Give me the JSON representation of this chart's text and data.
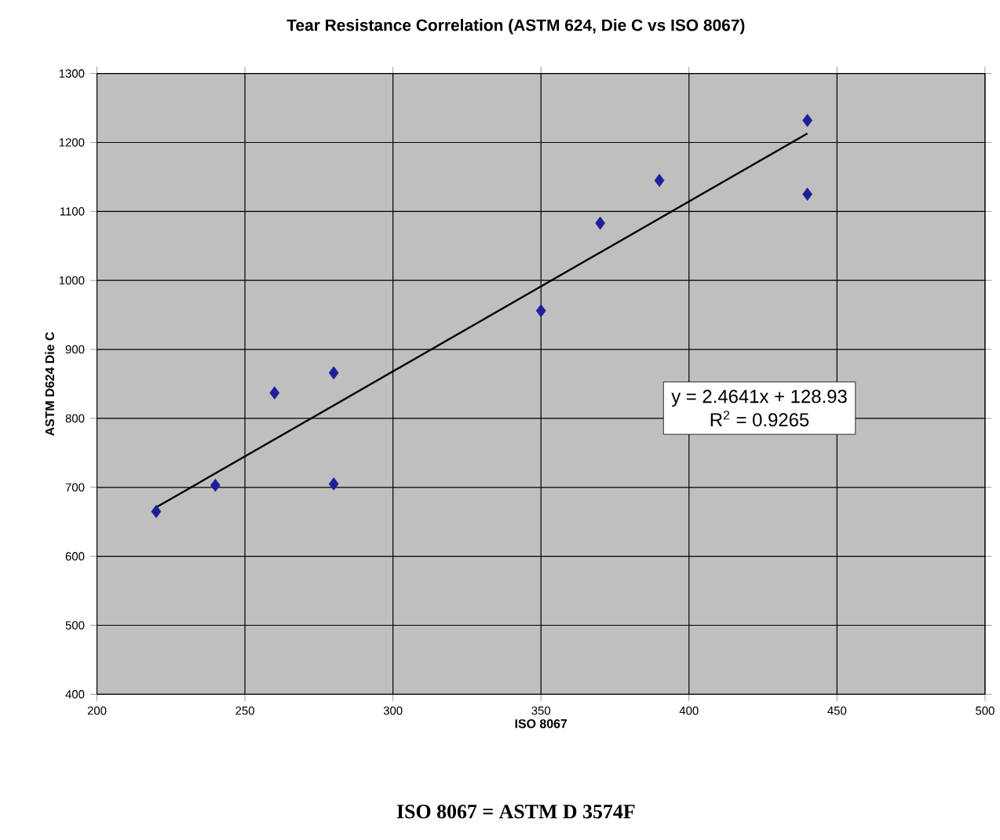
{
  "chart_data": {
    "type": "scatter",
    "title": "Tear Resistance Correlation (ASTM 624, Die C vs ISO 8067)",
    "xlabel": "ISO 8067",
    "ylabel": "ASTM D624 Die C",
    "xlim": [
      200,
      500
    ],
    "xticks": [
      200,
      250,
      300,
      350,
      400,
      450,
      500
    ],
    "ylim": [
      400,
      1300
    ],
    "yticks": [
      400,
      500,
      600,
      700,
      800,
      900,
      1000,
      1100,
      1200,
      1300
    ],
    "grid": true,
    "series": [
      {
        "marker": "diamond",
        "color": "#1f1f9a",
        "x": [
          220,
          240,
          260,
          280,
          280,
          350,
          370,
          390,
          440,
          440
        ],
        "values": [
          665,
          703,
          837,
          866,
          705,
          956,
          1083,
          1145,
          1232,
          1125
        ]
      },
      {
        "type": "line",
        "marker": "none",
        "color": "#000000",
        "line_style": "solid",
        "x": [
          220,
          440
        ],
        "values": [
          671,
          1213
        ]
      }
    ],
    "annotations": [
      "y = 2.4641x + 128.93",
      "R$^{2}$ = 0.9265",
      "ISO 8067 = ASTM D 3574F"
    ]
  }
}
